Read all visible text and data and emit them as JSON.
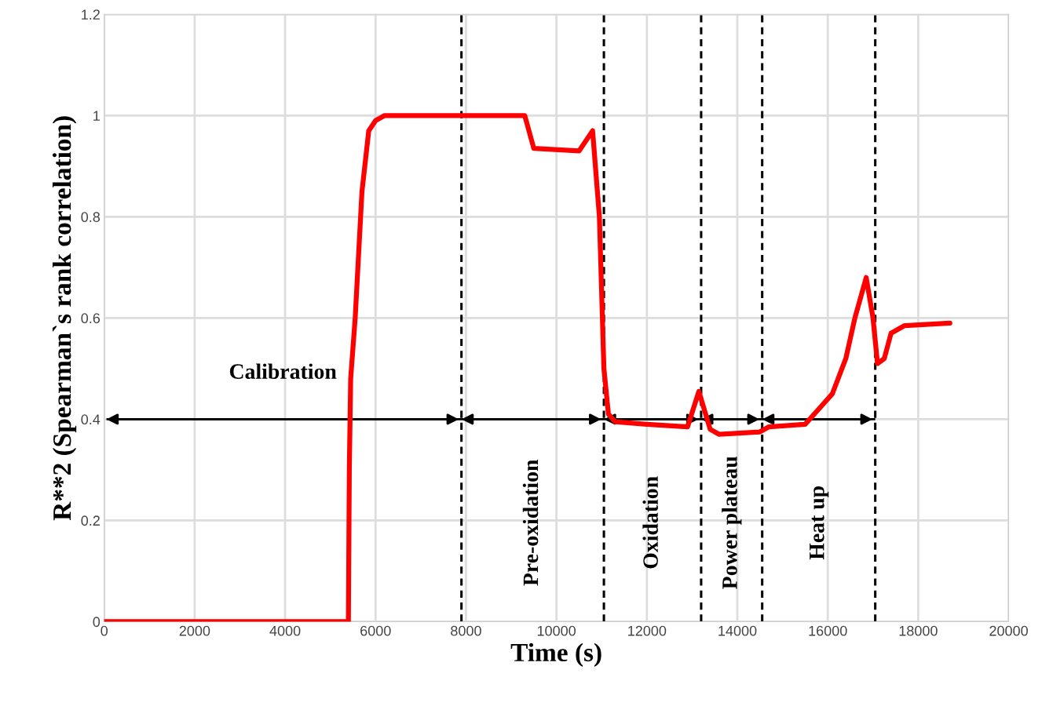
{
  "chart_data": {
    "type": "line",
    "xlabel": "Time (s)",
    "ylabel": "R**2 (Spearman`s rank correlation)",
    "xlim": [
      0,
      20000
    ],
    "xticks": [
      0,
      2000,
      4000,
      6000,
      8000,
      10000,
      12000,
      14000,
      16000,
      18000,
      20000
    ],
    "ylim": [
      0,
      1.2
    ],
    "yticks": [
      0,
      0.2,
      0.4,
      0.6,
      0.8,
      1,
      1.2
    ],
    "grid": true,
    "marker": "none",
    "line_style": "solid",
    "series": [
      {
        "color": "#ff0000",
        "x": [
          0,
          5400,
          5420,
          5450,
          5550,
          5700,
          5850,
          6000,
          6200,
          9300,
          9500,
          10500,
          10800,
          10950,
          11050,
          11150,
          11300,
          12000,
          12900,
          13150,
          13400,
          13600,
          14500,
          14700,
          15500,
          15800,
          16100,
          16400,
          16600,
          16850,
          17000,
          17100,
          17250,
          17400,
          17700,
          18700
        ],
        "values": [
          0,
          0,
          0.3,
          0.48,
          0.6,
          0.85,
          0.97,
          0.99,
          1.0,
          1.0,
          0.935,
          0.93,
          0.97,
          0.8,
          0.5,
          0.41,
          0.395,
          0.39,
          0.385,
          0.455,
          0.38,
          0.37,
          0.375,
          0.385,
          0.39,
          0.42,
          0.45,
          0.52,
          0.6,
          0.68,
          0.6,
          0.51,
          0.52,
          0.57,
          0.585,
          0.59
        ]
      }
    ],
    "ref_lines": [
      {
        "axis": "x",
        "value": 7900,
        "line_style": "dashed"
      },
      {
        "axis": "x",
        "value": 11050,
        "line_style": "dashed"
      },
      {
        "axis": "x",
        "value": 13200,
        "line_style": "dashed"
      },
      {
        "axis": "x",
        "value": 14550,
        "line_style": "dashed"
      },
      {
        "axis": "x",
        "value": 17050,
        "line_style": "dashed"
      },
      {
        "axis": "y",
        "value": 0.4,
        "line_style": "solid"
      }
    ],
    "annotations": [
      "Calibration",
      "Pre-oxidation",
      "Oxidation",
      "Power plateau",
      "Heat up"
    ]
  }
}
